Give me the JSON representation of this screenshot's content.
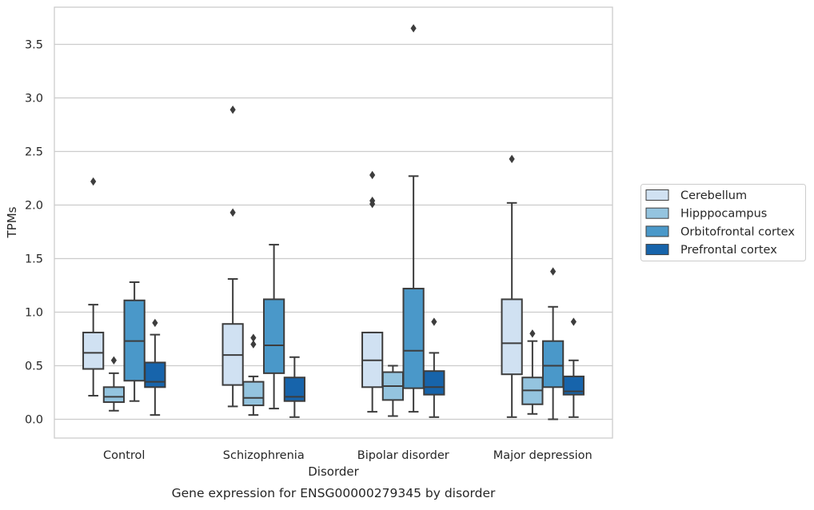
{
  "chart_data": {
    "type": "box",
    "title": "",
    "caption": "Gene expression for ENSG00000279345 by disorder",
    "xlabel": "Disorder",
    "ylabel": "TPMs",
    "ylim": [
      -0.17,
      3.85
    ],
    "yticks": [
      0.0,
      0.5,
      1.0,
      1.5,
      2.0,
      2.5,
      3.0,
      3.5
    ],
    "ytick_labels": [
      "0.0",
      "0.5",
      "1.0",
      "1.5",
      "2.0",
      "2.5",
      "3.0",
      "3.5"
    ],
    "grid": "horizontal",
    "legend_position": "right",
    "categories": [
      "Control",
      "Schizophrenia",
      "Bipolar disorder",
      "Major depression"
    ],
    "series": [
      {
        "name": "Cerebellum",
        "color": "#d0e1f2",
        "boxes": [
          {
            "whisker_low": 0.22,
            "q1": 0.47,
            "median": 0.62,
            "q3": 0.81,
            "whisker_high": 1.07,
            "outliers": [
              2.22
            ]
          },
          {
            "whisker_low": 0.12,
            "q1": 0.32,
            "median": 0.6,
            "q3": 0.89,
            "whisker_high": 1.31,
            "outliers": [
              2.89,
              1.93
            ]
          },
          {
            "whisker_low": 0.07,
            "q1": 0.3,
            "median": 0.55,
            "q3": 0.81,
            "whisker_high": 0.81,
            "outliers": [
              2.28,
              2.04,
              2.01
            ]
          },
          {
            "whisker_low": 0.02,
            "q1": 0.42,
            "median": 0.71,
            "q3": 1.12,
            "whisker_high": 2.02,
            "outliers": [
              2.43
            ]
          }
        ]
      },
      {
        "name": "Hipppocampus",
        "color": "#94c4df",
        "boxes": [
          {
            "whisker_low": 0.08,
            "q1": 0.16,
            "median": 0.21,
            "q3": 0.3,
            "whisker_high": 0.43,
            "outliers": [
              0.55
            ]
          },
          {
            "whisker_low": 0.04,
            "q1": 0.13,
            "median": 0.2,
            "q3": 0.35,
            "whisker_high": 0.4,
            "outliers": [
              0.76,
              0.7
            ]
          },
          {
            "whisker_low": 0.03,
            "q1": 0.18,
            "median": 0.31,
            "q3": 0.44,
            "whisker_high": 0.5,
            "outliers": []
          },
          {
            "whisker_low": 0.05,
            "q1": 0.14,
            "median": 0.27,
            "q3": 0.39,
            "whisker_high": 0.73,
            "outliers": [
              0.8
            ]
          }
        ]
      },
      {
        "name": "Orbitofrontal cortex",
        "color": "#4a98c9",
        "boxes": [
          {
            "whisker_low": 0.17,
            "q1": 0.36,
            "median": 0.73,
            "q3": 1.11,
            "whisker_high": 1.28,
            "outliers": []
          },
          {
            "whisker_low": 0.1,
            "q1": 0.43,
            "median": 0.69,
            "q3": 1.12,
            "whisker_high": 1.63,
            "outliers": []
          },
          {
            "whisker_low": 0.07,
            "q1": 0.29,
            "median": 0.64,
            "q3": 1.22,
            "whisker_high": 2.27,
            "outliers": [
              3.65
            ]
          },
          {
            "whisker_low": 0.0,
            "q1": 0.3,
            "median": 0.5,
            "q3": 0.73,
            "whisker_high": 1.05,
            "outliers": [
              1.38
            ]
          }
        ]
      },
      {
        "name": "Prefrontal cortex",
        "color": "#1764ab",
        "boxes": [
          {
            "whisker_low": 0.04,
            "q1": 0.3,
            "median": 0.35,
            "q3": 0.53,
            "whisker_high": 0.79,
            "outliers": [
              0.9
            ]
          },
          {
            "whisker_low": 0.02,
            "q1": 0.17,
            "median": 0.21,
            "q3": 0.39,
            "whisker_high": 0.58,
            "outliers": []
          },
          {
            "whisker_low": 0.02,
            "q1": 0.23,
            "median": 0.3,
            "q3": 0.45,
            "whisker_high": 0.62,
            "outliers": [
              0.91
            ]
          },
          {
            "whisker_low": 0.02,
            "q1": 0.23,
            "median": 0.26,
            "q3": 0.4,
            "whisker_high": 0.55,
            "outliers": [
              0.91
            ]
          }
        ]
      }
    ]
  }
}
